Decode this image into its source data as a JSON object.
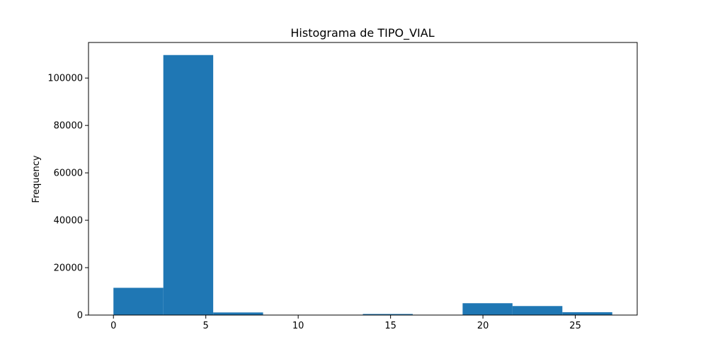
{
  "chart_data": {
    "type": "bar",
    "title": "Histograma de TIPO_VIAL",
    "xlabel": "",
    "ylabel": "Frequency",
    "xlim": [
      -1.35,
      28.35
    ],
    "ylim": [
      0,
      115000
    ],
    "bin_edges": [
      0,
      2.7,
      5.4,
      8.1,
      10.8,
      13.5,
      16.2,
      18.9,
      21.6,
      24.3,
      27
    ],
    "values": [
      11500,
      109700,
      1100,
      0,
      150,
      450,
      0,
      5000,
      3800,
      1200
    ],
    "xticks": [
      0,
      5,
      10,
      15,
      20,
      25
    ],
    "xtick_labels": [
      "0",
      "5",
      "10",
      "15",
      "20",
      "25"
    ],
    "yticks": [
      0,
      20000,
      40000,
      60000,
      80000,
      100000
    ],
    "ytick_labels": [
      "0",
      "20000",
      "40000",
      "60000",
      "80000",
      "100000"
    ],
    "grid": false,
    "bar_color": "#1f77b4"
  }
}
